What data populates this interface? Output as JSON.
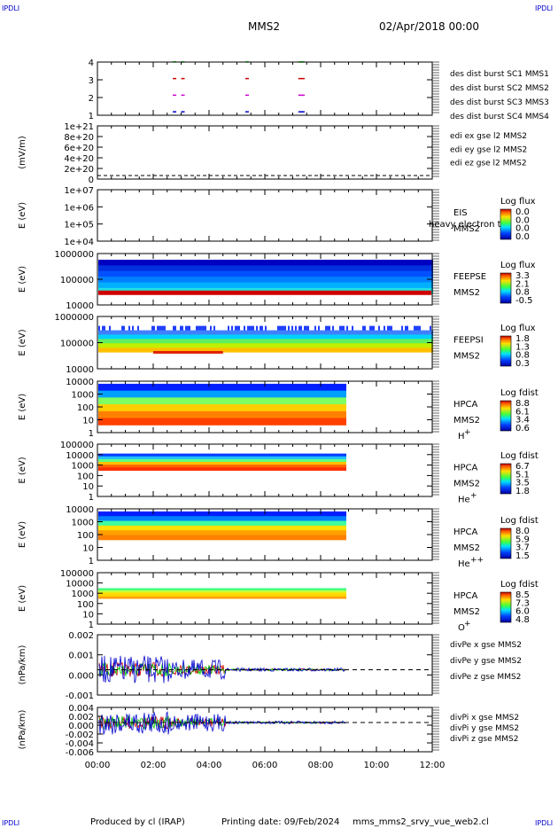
{
  "header": {
    "spacecraft": "MMS2",
    "date": "02/Apr/2018 00:00",
    "corner_label": "IPDLI"
  },
  "footer": {
    "produced_by": "Produced by cl (IRAP)",
    "printing_date": "Printing date: 09/Feb/2024",
    "filename": "mms_mms2_srvy_vue_web2.cl"
  },
  "chart_data": {
    "type": "line",
    "x_axis": {
      "ticks": [
        "00:00",
        "02:00",
        "04:00",
        "06:00",
        "08:00",
        "10:00",
        "12:00"
      ],
      "range_hours": [
        0,
        12
      ]
    },
    "panels": [
      {
        "id": "burst",
        "type": "scatter",
        "yticks": [
          "1",
          "2",
          "3",
          "4"
        ],
        "legend": [
          {
            "label": "des dist burst SC1 MMS1",
            "color": "#0000cc"
          },
          {
            "label": "des dist burst SC2 MMS2",
            "color": "#cc00cc"
          },
          {
            "label": "des dist burst SC3 MMS3",
            "color": "#cc0000"
          },
          {
            "label": "des dist burst SC4 MMS4",
            "color": "#00cc00"
          }
        ],
        "burst_times_hours": [
          2.7,
          3.0,
          5.3,
          7.2,
          7.3
        ]
      },
      {
        "id": "edi",
        "type": "line",
        "ylabel": "(mV/m)",
        "yticks": [
          "0",
          "2e+20",
          "4e+20",
          "6e+20",
          "8e+20",
          "1e+21"
        ],
        "legend": [
          {
            "label": "edi ex gse l2 MMS2",
            "color": "#cc0000"
          },
          {
            "label": "edi ey gse l2 MMS2",
            "color": "#00cc00"
          },
          {
            "label": "edi ez gse l2 MMS2",
            "color": "#0000cc"
          }
        ]
      },
      {
        "id": "eis",
        "type": "heatmap",
        "ylabel": "E (eV)",
        "yticks": [
          "1e+04",
          "1e+05",
          "1e+06",
          "1e+07"
        ],
        "instrument": "EIS",
        "instrument2": "MMS2",
        "overlay_text": "heavy electron to",
        "cbar_title": "Log flux",
        "cbar_ticks": [
          "0.0",
          "0.0",
          "0.0",
          "0.0"
        ]
      },
      {
        "id": "feepse",
        "type": "heatmap",
        "ylabel": "E (eV)",
        "yticks": [
          "10000",
          "100000",
          "1000000"
        ],
        "instrument": "FEEPSE",
        "instrument2": "MMS2",
        "cbar_title": "Log flux",
        "cbar_ticks": [
          "3.3",
          "2.1",
          "0.8",
          "-0.5"
        ]
      },
      {
        "id": "feepsi",
        "type": "heatmap",
        "ylabel": "E (eV)",
        "yticks": [
          "10000",
          "100000",
          "1000000"
        ],
        "instrument": "FEEPSI",
        "instrument2": "MMS2",
        "cbar_title": "Log flux",
        "cbar_ticks": [
          "1.8",
          "1.3",
          "0.8",
          "0.3"
        ]
      },
      {
        "id": "hpca_h",
        "type": "heatmap",
        "ylabel": "E (eV)",
        "yticks": [
          "1",
          "10",
          "100",
          "1000",
          "10000"
        ],
        "instrument": "HPCA",
        "instrument2": "MMS2",
        "species": "H",
        "charge": "+",
        "cbar_title": "Log fdist",
        "cbar_ticks": [
          "8.8",
          "6.1",
          "3.4",
          "0.6"
        ]
      },
      {
        "id": "hpca_he",
        "type": "heatmap",
        "ylabel": "E (eV)",
        "yticks": [
          "1",
          "10",
          "100",
          "1000",
          "10000",
          "100000"
        ],
        "instrument": "HPCA",
        "instrument2": "MMS2",
        "species": "He",
        "charge": "+",
        "cbar_title": "Log fdist",
        "cbar_ticks": [
          "6.7",
          "5.1",
          "3.5",
          "1.8"
        ]
      },
      {
        "id": "hpca_hepp",
        "type": "heatmap",
        "ylabel": "E (eV)",
        "yticks": [
          "1",
          "10",
          "100",
          "1000",
          "10000"
        ],
        "instrument": "HPCA",
        "instrument2": "MMS2",
        "species": "He",
        "charge": "++",
        "cbar_title": "Log fdist",
        "cbar_ticks": [
          "8.0",
          "5.9",
          "3.7",
          "1.5"
        ]
      },
      {
        "id": "hpca_o",
        "type": "heatmap",
        "ylabel": "E (eV)",
        "yticks": [
          "1",
          "10",
          "100",
          "1000",
          "10000",
          "100000"
        ],
        "instrument": "HPCA",
        "instrument2": "MMS2",
        "species": "O",
        "charge": "+",
        "cbar_title": "Log fdist",
        "cbar_ticks": [
          "8.5",
          "7.3",
          "6.0",
          "4.8"
        ]
      },
      {
        "id": "divpe",
        "type": "line",
        "ylabel": "(nPa/km)",
        "yticks": [
          "-0.001",
          "0.000",
          "0.001",
          "0.002"
        ],
        "legend": [
          {
            "label": "divPe x gse MMS2",
            "color": "#cc0000"
          },
          {
            "label": "divPe y gse MMS2",
            "color": "#00cc00"
          },
          {
            "label": "divPe z gse MMS2",
            "color": "#0000cc"
          }
        ]
      },
      {
        "id": "divpi",
        "type": "line",
        "ylabel": "(nPa/km)",
        "yticks": [
          "-0.006",
          "-0.004",
          "-0.002",
          "0.000",
          "0.002",
          "0.004"
        ],
        "legend": [
          {
            "label": "divPi x gse MMS2",
            "color": "#cc0000"
          },
          {
            "label": "divPi y gse MMS2",
            "color": "#00cc00"
          },
          {
            "label": "divPi z gse MMS2",
            "color": "#0000cc"
          }
        ]
      }
    ]
  }
}
